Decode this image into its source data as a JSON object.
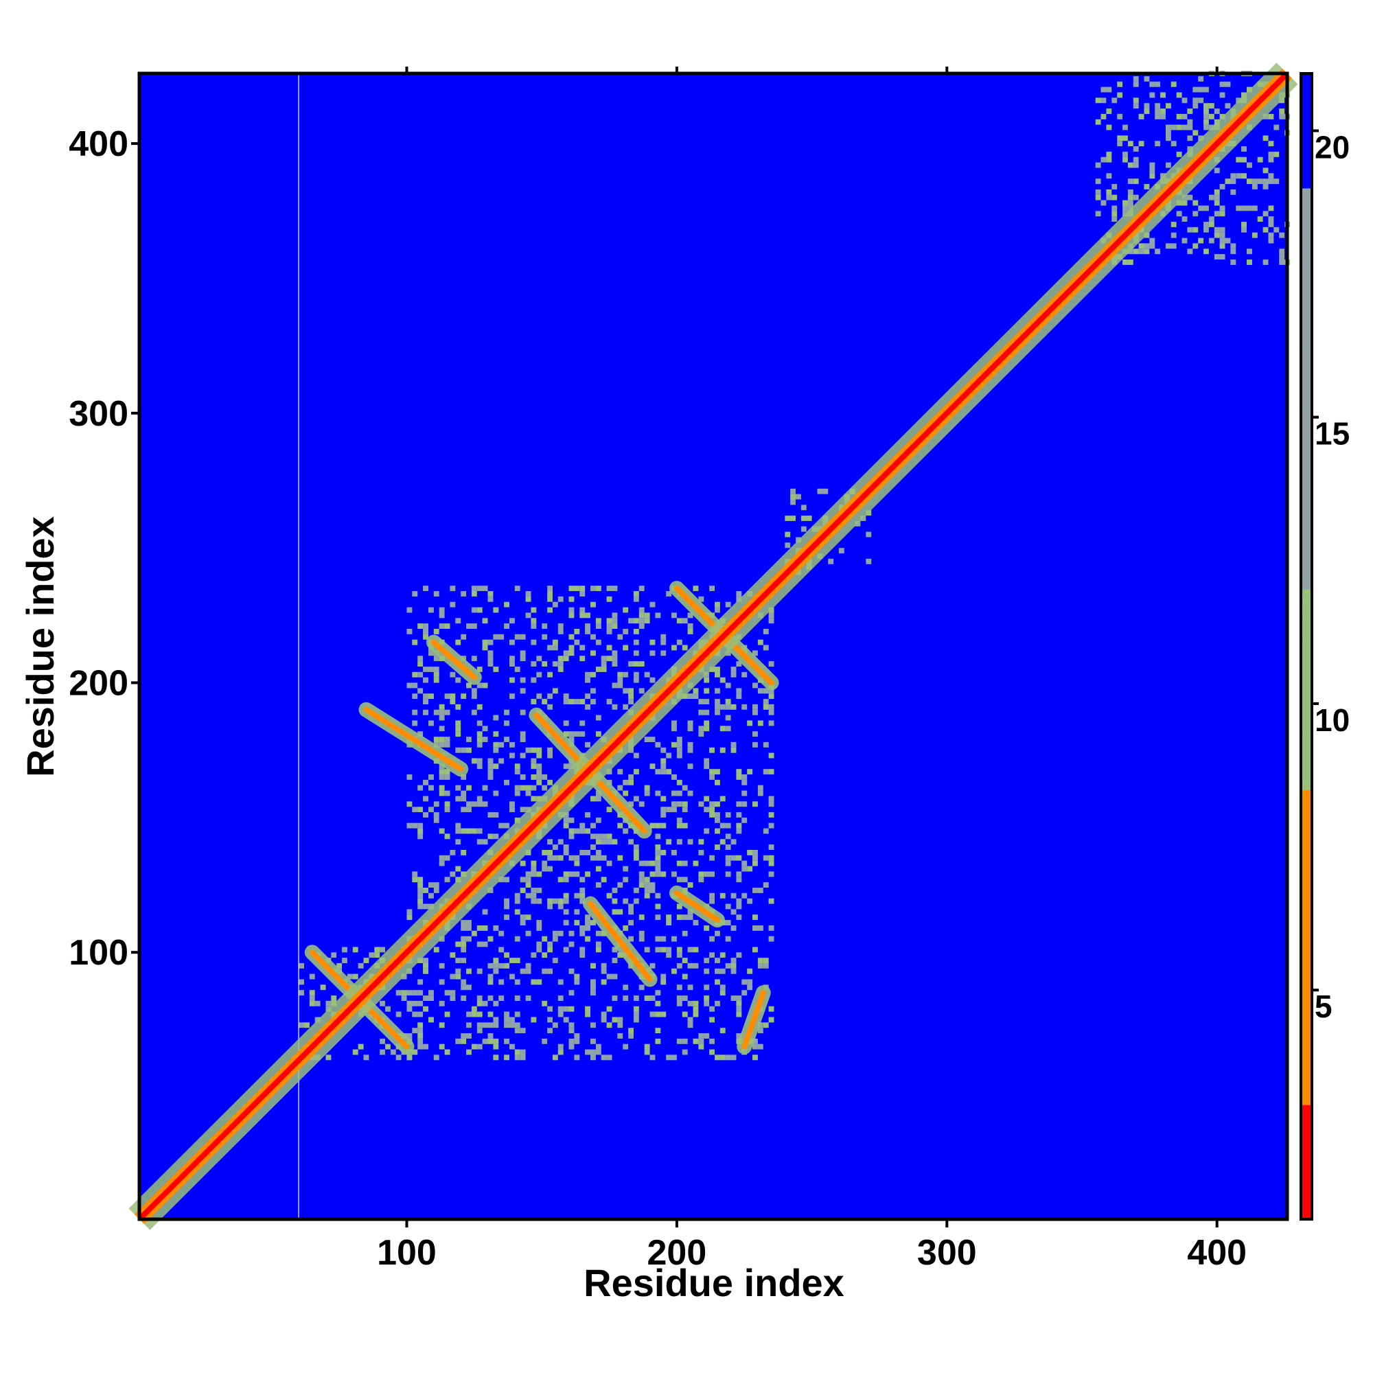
{
  "chart_data": {
    "type": "heatmap",
    "xlabel": "Residue index",
    "ylabel": "Residue index",
    "xlim": [
      1,
      426
    ],
    "ylim": [
      1,
      426
    ],
    "x_ticks": [
      100,
      200,
      300,
      400
    ],
    "y_ticks": [
      100,
      200,
      300,
      400
    ],
    "colorbar": {
      "ticks": [
        5,
        10,
        15,
        20
      ],
      "range": [
        1,
        21
      ],
      "colors": [
        "#ff0000",
        "#ff8c00",
        "#9bbf7a",
        "#8fa3a8",
        "#0000ff"
      ]
    },
    "background_value": 21,
    "diagonal": {
      "from": 1,
      "to": 426
    },
    "gap_column": 60,
    "contact_blocks": [
      {
        "x": [
          60,
          100
        ],
        "y": [
          60,
          100
        ]
      },
      {
        "x": [
          100,
          235
        ],
        "y": [
          60,
          235
        ]
      },
      {
        "x": [
          240,
          270
        ],
        "y": [
          240,
          270
        ]
      },
      {
        "x": [
          355,
          426
        ],
        "y": [
          355,
          426
        ]
      }
    ],
    "contact_lines": [
      {
        "from": [
          65,
          100
        ],
        "to": [
          100,
          65
        ]
      },
      {
        "from": [
          85,
          190
        ],
        "to": [
          120,
          168
        ]
      },
      {
        "from": [
          110,
          215
        ],
        "to": [
          125,
          202
        ]
      },
      {
        "from": [
          148,
          188
        ],
        "to": [
          188,
          145
        ]
      },
      {
        "from": [
          168,
          118
        ],
        "to": [
          190,
          90
        ]
      },
      {
        "from": [
          200,
          235
        ],
        "to": [
          235,
          200
        ]
      },
      {
        "from": [
          200,
          122
        ],
        "to": [
          215,
          112
        ]
      },
      {
        "from": [
          225,
          65
        ],
        "to": [
          232,
          85
        ]
      }
    ],
    "grid": false,
    "legend": "none"
  }
}
